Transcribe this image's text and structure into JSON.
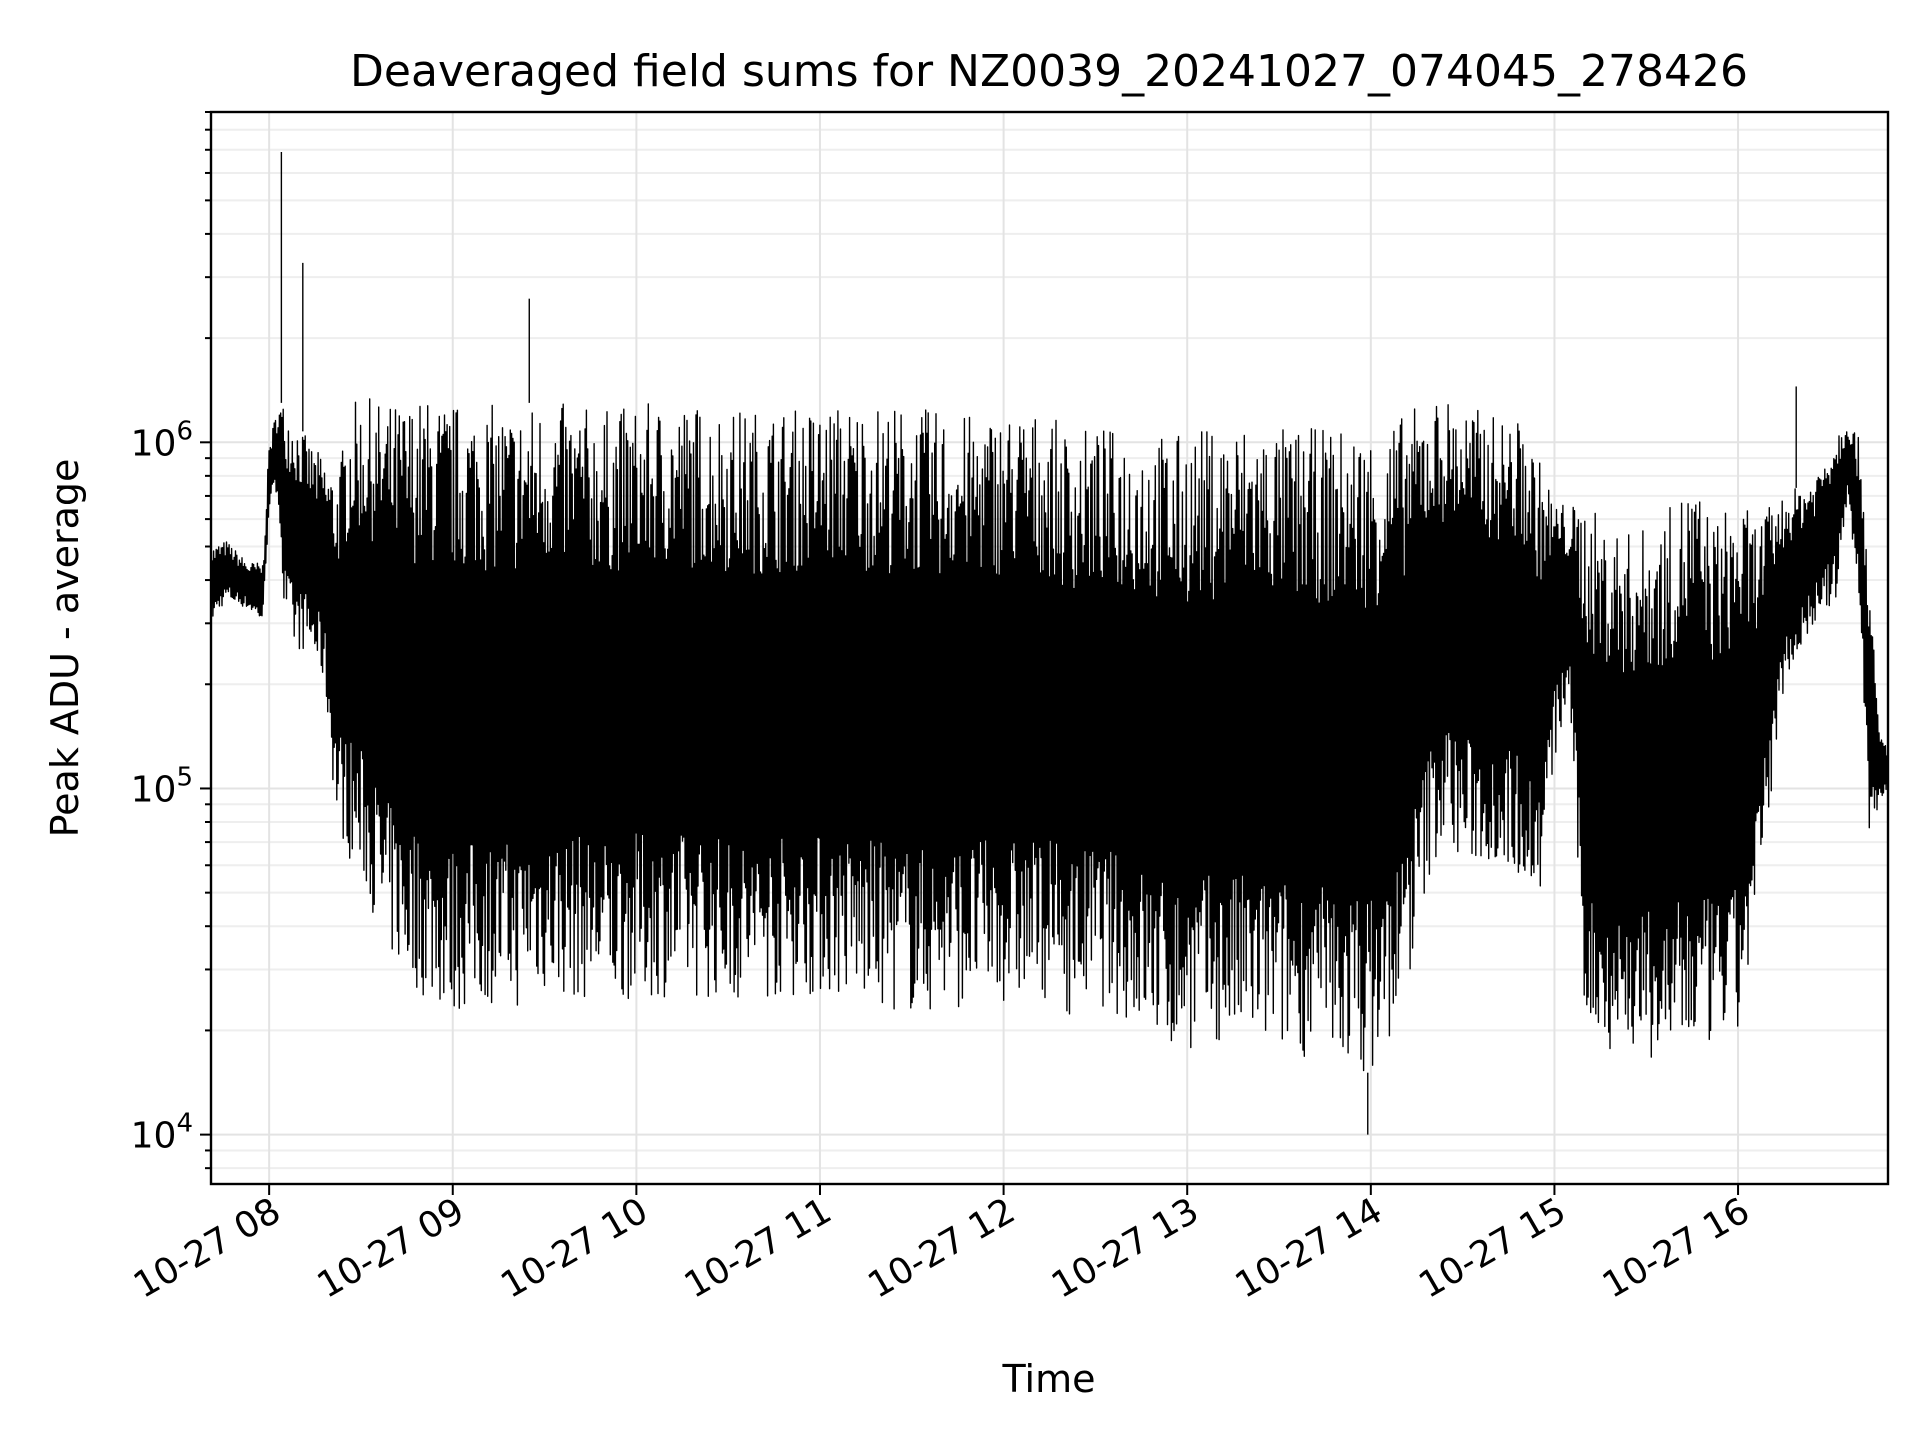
{
  "chart_data": {
    "type": "line",
    "title": "Deaveraged field sums for NZ0039_20241027_074045_278426",
    "xlabel": "Time",
    "ylabel": "Peak ADU - average",
    "xscale": "time",
    "yscale": "log",
    "xlim": [
      "2024-10-27 07:41",
      "2024-10-27 16:49"
    ],
    "ylim": [
      7200,
      9000000
    ],
    "x_ticks": [
      {
        "value": "2024-10-27 08:00",
        "label": "10-27 08"
      },
      {
        "value": "2024-10-27 09:00",
        "label": "10-27 09"
      },
      {
        "value": "2024-10-27 10:00",
        "label": "10-27 10"
      },
      {
        "value": "2024-10-27 11:00",
        "label": "10-27 11"
      },
      {
        "value": "2024-10-27 12:00",
        "label": "10-27 12"
      },
      {
        "value": "2024-10-27 13:00",
        "label": "10-27 13"
      },
      {
        "value": "2024-10-27 14:00",
        "label": "10-27 14"
      },
      {
        "value": "2024-10-27 15:00",
        "label": "10-27 15"
      },
      {
        "value": "2024-10-27 16:00",
        "label": "10-27 16"
      }
    ],
    "y_ticks": [
      {
        "value": 10000,
        "base": "10",
        "exp": "4"
      },
      {
        "value": 100000,
        "base": "10",
        "exp": "5"
      },
      {
        "value": 1000000,
        "base": "10",
        "exp": "6"
      }
    ],
    "grid": true,
    "color": "#000000",
    "series": [
      {
        "x": [
          "2024-10-27 07:41",
          "2024-10-27 07:46",
          "2024-10-27 07:53",
          "2024-10-27 07:58",
          "2024-10-27 08:00",
          "2024-10-27 08:03",
          "2024-10-27 08:05",
          "2024-10-27 08:08",
          "2024-10-27 08:13",
          "2024-10-27 08:18",
          "2024-10-27 08:22",
          "2024-10-27 08:27",
          "2024-10-27 08:32",
          "2024-10-27 08:37",
          "2024-10-27 08:42",
          "2024-10-27 08:50",
          "2024-10-27 09:00",
          "2024-10-27 09:10",
          "2024-10-27 09:22",
          "2024-10-27 09:24",
          "2024-10-27 09:35",
          "2024-10-27 09:50",
          "2024-10-27 10:05",
          "2024-10-27 10:20",
          "2024-10-27 10:35",
          "2024-10-27 10:50",
          "2024-10-27 11:05",
          "2024-10-27 11:20",
          "2024-10-27 11:35",
          "2024-10-27 11:50",
          "2024-10-27 12:05",
          "2024-10-27 12:15",
          "2024-10-27 12:20",
          "2024-10-27 12:30",
          "2024-10-27 12:45",
          "2024-10-27 12:55",
          "2024-10-27 13:05",
          "2024-10-27 13:20",
          "2024-10-27 13:35",
          "2024-10-27 13:50",
          "2024-10-27 14:00",
          "2024-10-27 14:03",
          "2024-10-27 14:10",
          "2024-10-27 14:20",
          "2024-10-27 14:25",
          "2024-10-27 14:30",
          "2024-10-27 14:40",
          "2024-10-27 14:50",
          "2024-10-27 14:55",
          "2024-10-27 15:00",
          "2024-10-27 15:05",
          "2024-10-27 15:10",
          "2024-10-27 15:15",
          "2024-10-27 15:25",
          "2024-10-27 15:35",
          "2024-10-27 15:45",
          "2024-10-27 15:52",
          "2024-10-27 16:00",
          "2024-10-27 16:05",
          "2024-10-27 16:15",
          "2024-10-27 16:25",
          "2024-10-27 16:32",
          "2024-10-27 16:36",
          "2024-10-27 16:40",
          "2024-10-27 16:43",
          "2024-10-27 16:46",
          "2024-10-27 16:49"
        ],
        "low": [
          300000,
          350000,
          330000,
          300000,
          650000,
          700000,
          300000,
          250000,
          250000,
          200000,
          80000,
          60000,
          50000,
          35000,
          30000,
          25000,
          22000,
          24000,
          23000,
          26000,
          25000,
          24000,
          25000,
          25000,
          24000,
          25000,
          25000,
          23000,
          22000,
          24000,
          24000,
          25000,
          22000,
          24000,
          20000,
          17000,
          18000,
          18000,
          17000,
          16000,
          15000,
          16000,
          22000,
          60000,
          70000,
          60000,
          60000,
          55000,
          45000,
          120000,
          180000,
          20000,
          18000,
          17000,
          16000,
          17000,
          18000,
          19000,
          35000,
          200000,
          300000,
          350000,
          700000,
          300000,
          70000,
          90000,
          100000
        ],
        "high": [
          500000,
          520000,
          450000,
          450000,
          1000000,
          1300000,
          1300000,
          1200000,
          1000000,
          900000,
          800000,
          1300000,
          1350000,
          1300000,
          1300000,
          1350000,
          1300000,
          1300000,
          1250000,
          1300000,
          1300000,
          1250000,
          1300000,
          1300000,
          1250000,
          1250000,
          1300000,
          1300000,
          1250000,
          1200000,
          1250000,
          1200000,
          1100000,
          1100000,
          1100000,
          1050000,
          1100000,
          1150000,
          1100000,
          1100000,
          1100000,
          1100000,
          1200000,
          1350000,
          1350000,
          1300000,
          1200000,
          1150000,
          900000,
          700000,
          650000,
          700000,
          600000,
          550000,
          600000,
          800000,
          600000,
          700000,
          600000,
          700000,
          800000,
          1100000,
          1200000,
          1000000,
          400000,
          150000,
          130000
        ]
      }
    ],
    "spikes": [
      {
        "x": "2024-10-27 08:04",
        "y": 6900000
      },
      {
        "x": "2024-10-27 08:11",
        "y": 3300000
      },
      {
        "x": "2024-10-27 09:25",
        "y": 2600000
      },
      {
        "x": "2024-10-27 13:59",
        "y": 10000
      },
      {
        "x": "2024-10-27 16:19",
        "y": 1450000
      }
    ]
  }
}
